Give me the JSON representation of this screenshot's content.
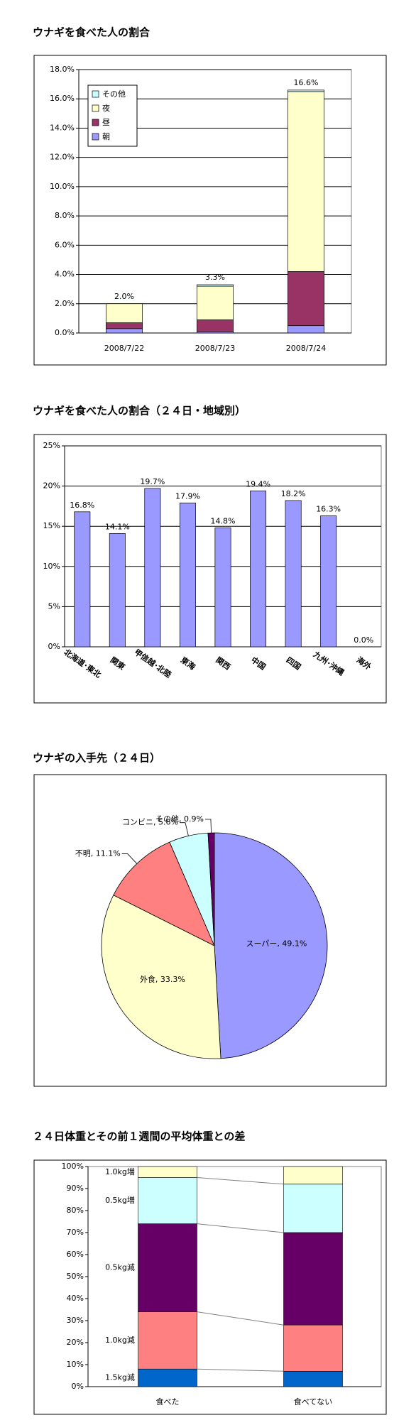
{
  "chart_data": [
    {
      "type": "stacked_bar",
      "title": "ウナギを食べた人の割合",
      "categories": [
        "2008/7/22",
        "2008/7/23",
        "2008/7/24"
      ],
      "series": [
        {
          "name": "朝",
          "color": "#9999ff",
          "values": [
            0.3,
            0.1,
            0.5
          ]
        },
        {
          "name": "昼",
          "color": "#993366",
          "values": [
            0.4,
            0.8,
            3.7
          ]
        },
        {
          "name": "夜",
          "color": "#ffffcc",
          "values": [
            1.3,
            2.3,
            12.3
          ]
        },
        {
          "name": "その他",
          "color": "#ccffff",
          "values": [
            0.0,
            0.1,
            0.1
          ]
        }
      ],
      "totals": [
        2.0,
        3.3,
        16.6
      ],
      "total_labels": [
        "2.0%",
        "3.3%",
        "16.6%"
      ],
      "ylim": [
        0,
        18
      ],
      "yticks": [
        {
          "value": 0,
          "label": "0.0%"
        },
        {
          "value": 2,
          "label": "2.0%"
        },
        {
          "value": 4,
          "label": "4.0%"
        },
        {
          "value": 6,
          "label": "6.0%"
        },
        {
          "value": 8,
          "label": "8.0%"
        },
        {
          "value": 10,
          "label": "10.0%"
        },
        {
          "value": 12,
          "label": "12.0%"
        },
        {
          "value": 14,
          "label": "14.0%"
        },
        {
          "value": 16,
          "label": "16.0%"
        },
        {
          "value": 18,
          "label": "18.0%"
        }
      ],
      "grid": true,
      "legend": "upper left"
    },
    {
      "type": "bar",
      "title": "ウナギを食べた人の割合（２４日・地域別）",
      "categories": [
        "北海道･東北",
        "関東",
        "甲信越･北陸",
        "東海",
        "関西",
        "中国",
        "四国",
        "九州･沖縄",
        "海外"
      ],
      "values": [
        16.8,
        14.1,
        19.7,
        17.9,
        14.8,
        19.4,
        18.2,
        16.3,
        0.0
      ],
      "value_labels": [
        "16.8%",
        "14.1%",
        "19.7%",
        "17.9%",
        "14.8%",
        "19.4%",
        "18.2%",
        "16.3%",
        "0.0%"
      ],
      "color": "#9999ff",
      "ylim": [
        0,
        25
      ],
      "yticks": [
        {
          "value": 0,
          "label": "0%"
        },
        {
          "value": 5,
          "label": "5%"
        },
        {
          "value": 10,
          "label": "10%"
        },
        {
          "value": 15,
          "label": "15%"
        },
        {
          "value": 20,
          "label": "20%"
        },
        {
          "value": 25,
          "label": "25%"
        }
      ],
      "grid": true
    },
    {
      "type": "pie",
      "title": "ウナギの入手先（２４日）",
      "categories": [
        "スーパー",
        "外食",
        "不明",
        "コンビニ",
        "その他"
      ],
      "values": [
        49.1,
        33.3,
        11.1,
        5.6,
        0.9
      ],
      "labels": [
        "スーパー, 49.1%",
        "外食, 33.3%",
        "不明, 11.1%",
        "コンビニ, 5.6%",
        "その他, 0.9%"
      ],
      "colors": [
        "#9999ff",
        "#ffffcc",
        "#ff8080",
        "#ccffff",
        "#660066"
      ]
    },
    {
      "type": "stacked_percent_bar",
      "title": "２４日体重とその前１週間の平均体重との差",
      "categories": [
        "食べた",
        "食べてない"
      ],
      "series": [
        {
          "name": "1.5kg減",
          "color": "#0066cc",
          "values": [
            8,
            7
          ]
        },
        {
          "name": "1.0kg減",
          "color": "#ff8080",
          "values": [
            26,
            21
          ]
        },
        {
          "name": "0.5kg減",
          "color": "#660066",
          "values": [
            40,
            42
          ]
        },
        {
          "name": "0.5kg増",
          "color": "#ccffff",
          "values": [
            21,
            22
          ]
        },
        {
          "name": "1.0kg増",
          "color": "#ffffcc",
          "values": [
            5,
            8
          ]
        }
      ],
      "ylim": [
        0,
        100
      ],
      "yticks": [
        {
          "value": 0,
          "label": "0%"
        },
        {
          "value": 10,
          "label": "10%"
        },
        {
          "value": 20,
          "label": "20%"
        },
        {
          "value": 30,
          "label": "30%"
        },
        {
          "value": 40,
          "label": "40%"
        },
        {
          "value": 50,
          "label": "50%"
        },
        {
          "value": 60,
          "label": "60%"
        },
        {
          "value": 70,
          "label": "70%"
        },
        {
          "value": 80,
          "label": "80%"
        },
        {
          "value": 90,
          "label": "90%"
        },
        {
          "value": 100,
          "label": "100%"
        }
      ],
      "connectors": true
    }
  ]
}
